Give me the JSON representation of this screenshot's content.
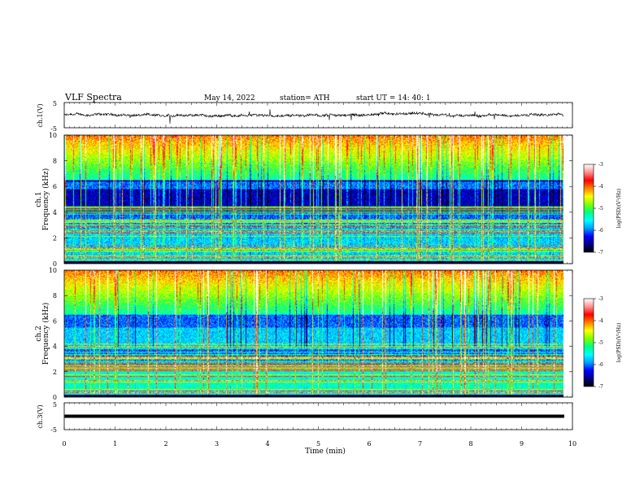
{
  "header": {
    "title": "VLF  Spectra",
    "date": "May 14, 2022",
    "station": "station= ATH",
    "start": "start  UT  =   14: 40: 1"
  },
  "chart_data": {
    "type": "heatmap",
    "x": {
      "label": "Time  (min)",
      "range": [
        0,
        10
      ],
      "ticks": [
        "0",
        "1",
        "2",
        "3",
        "4",
        "5",
        "6",
        "7",
        "8",
        "9",
        "10"
      ],
      "data_end": 9.83
    },
    "panels": [
      {
        "kind": "waveform",
        "ylabel": "ch.1(V)",
        "yrange": [
          -5,
          5
        ],
        "yticks": [
          "5",
          "-5"
        ]
      },
      {
        "kind": "spectrogram",
        "ylabel": "ch.1\nFrequency  (kHz)",
        "ylabel_line1": "ch.1",
        "ylabel_line2": "Frequency  (kHz)",
        "yrange": [
          0,
          10
        ],
        "yticks": [
          "0",
          "2",
          "4",
          "6",
          "8",
          "10"
        ],
        "colorbar": {
          "label": "log(PSD)(V²/Hz)",
          "range": [
            -7,
            -3
          ],
          "ticks": [
            "-3",
            "-4",
            "-5",
            "-6",
            "-7"
          ]
        }
      },
      {
        "kind": "spectrogram",
        "ylabel": "ch.2\nFrequency  (kHz)",
        "ylabel_line1": "ch.2",
        "ylabel_line2": "Frequency  (kHz)",
        "yrange": [
          0,
          10
        ],
        "yticks": [
          "0",
          "2",
          "4",
          "6",
          "8",
          "10"
        ],
        "colorbar": {
          "label": "log(PSD)(V²/Hz)",
          "range": [
            -7,
            -3
          ],
          "ticks": [
            "-3",
            "-4",
            "-5",
            "-6",
            "-7"
          ]
        }
      },
      {
        "kind": "waveform",
        "ylabel": "ch.3(V)",
        "yrange": [
          -5,
          5
        ],
        "yticks": [
          "5",
          "-5"
        ],
        "constant_value": 0
      }
    ],
    "colormap": [
      "#000000",
      "#000080",
      "#0000ff",
      "#00a0ff",
      "#00ffff",
      "#00ff80",
      "#80ff00",
      "#ffff00",
      "#ff8000",
      "#ff0000",
      "#ff9090",
      "#ffffff"
    ]
  }
}
